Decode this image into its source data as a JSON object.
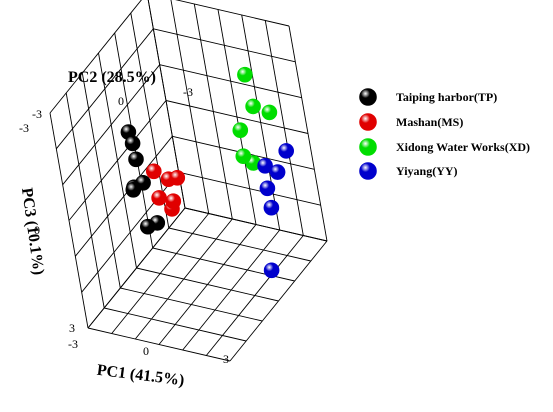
{
  "chart_data": {
    "type": "scatter",
    "projection": "3d",
    "title": "",
    "xlabel": "PC1 (41.5%)",
    "ylabel": "PC2 (28.5%)",
    "zlabel": "PC3 (10.1%)",
    "x_ticks": [
      "-3",
      "0",
      "3"
    ],
    "y_ticks": [
      "0",
      "-3"
    ],
    "z_ticks": [
      "-3",
      "0",
      "3"
    ],
    "grid": true,
    "legend_position": "right",
    "marker": "sphere",
    "series": [
      {
        "name": "Taiping harbor(TP)",
        "color": "#000000",
        "points": [
          [
            -2.3,
            0.0,
            -0.9
          ],
          [
            -2.4,
            0.1,
            0.6
          ],
          [
            -2.2,
            0.0,
            -0.6
          ],
          [
            -2.0,
            0.2,
            -0.3
          ],
          [
            -2.1,
            0.5,
            0.4
          ],
          [
            -1.7,
            0.4,
            0.2
          ],
          [
            -1.4,
            0.9,
            1.1
          ],
          [
            -1.3,
            0.5,
            1.2
          ]
        ]
      },
      {
        "name": "Mashan(MS)",
        "color": "#e00000",
        "points": [
          [
            -1.4,
            0.1,
            0.0
          ],
          [
            -1.2,
            0.3,
            0.6
          ],
          [
            -0.9,
            0.0,
            0.2
          ],
          [
            -0.8,
            0.2,
            0.9
          ],
          [
            -0.6,
            0.3,
            0.6
          ],
          [
            -0.5,
            0.0,
            0.1
          ]
        ]
      },
      {
        "name": "Xidong Water Works(XD)",
        "color": "#00dd00",
        "points": [
          [
            1.2,
            -2.4,
            -1.7
          ],
          [
            1.4,
            -2.3,
            -0.9
          ],
          [
            1.9,
            -2.5,
            -0.7
          ],
          [
            1.0,
            -1.9,
            -0.4
          ],
          [
            1.1,
            -1.7,
            0.2
          ],
          [
            1.4,
            -1.8,
            0.4
          ]
        ]
      },
      {
        "name": "Yiyang(YY)",
        "color": "#0000cc",
        "points": [
          [
            1.9,
            -1.8,
            0.4
          ],
          [
            2.4,
            -1.8,
            0.5
          ],
          [
            2.6,
            -2.2,
            0.1
          ],
          [
            2.0,
            -1.6,
            0.9
          ],
          [
            2.2,
            -1.4,
            1.3
          ],
          [
            2.5,
            -0.5,
            2.5
          ]
        ]
      }
    ]
  }
}
